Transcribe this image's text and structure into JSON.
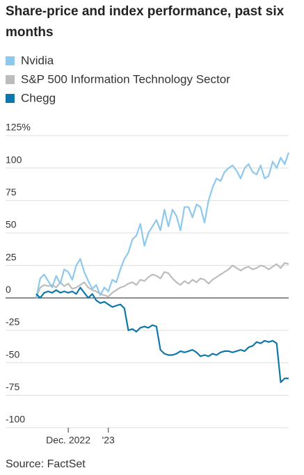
{
  "chart_data": {
    "type": "line",
    "title": "Share-price and index performance, past six months",
    "source": "Source: FactSet",
    "categories": [
      null,
      null,
      null,
      null,
      null,
      null,
      null,
      null,
      "Dec. 2022",
      null,
      null,
      null,
      null,
      null,
      null,
      null,
      null,
      null,
      "'23",
      null,
      null,
      null,
      null,
      null,
      null,
      null,
      null,
      null,
      null,
      null,
      null,
      null,
      null,
      null,
      null,
      null,
      null,
      null,
      null,
      null,
      null,
      null,
      null,
      null,
      null,
      null,
      null,
      null,
      null,
      null,
      null,
      null,
      null,
      null,
      null,
      null,
      null,
      null,
      null,
      null,
      null,
      null,
      null,
      null
    ],
    "series": [
      {
        "name": "Nvidia",
        "color": "#8ec8ec",
        "values": [
          0,
          15,
          18,
          13,
          8,
          17,
          11,
          22,
          20,
          14,
          25,
          30,
          20,
          13,
          7,
          10,
          2,
          8,
          5,
          14,
          12,
          22,
          30,
          35,
          45,
          48,
          57,
          40,
          50,
          55,
          60,
          52,
          68,
          55,
          68,
          63,
          52,
          70,
          70,
          62,
          72,
          70,
          58,
          75,
          85,
          92,
          90,
          97,
          100,
          102,
          98,
          92,
          100,
          103,
          97,
          95,
          102,
          92,
          94,
          105,
          100,
          108,
          103,
          112
        ]
      },
      {
        "name": "S&P 500 Information Technology Sector",
        "color": "#bcbcbc",
        "values": [
          0,
          8,
          10,
          9,
          10,
          8,
          12,
          9,
          11,
          7,
          8,
          10,
          12,
          8,
          6,
          5,
          3,
          2,
          1,
          4,
          6,
          8,
          9,
          11,
          12,
          10,
          14,
          13,
          16,
          18,
          17,
          15,
          20,
          19,
          15,
          12,
          10,
          13,
          11,
          14,
          12,
          15,
          14,
          11,
          14,
          16,
          18,
          20,
          22,
          25,
          23,
          21,
          23,
          24,
          22,
          23,
          25,
          24,
          22,
          24,
          26,
          23,
          27,
          26
        ]
      },
      {
        "name": "Chegg",
        "color": "#0e77aa",
        "values": [
          3,
          0,
          4,
          5,
          4,
          6,
          4,
          5,
          4,
          5,
          3,
          8,
          4,
          0,
          3,
          -2,
          -4,
          -3,
          -5,
          -7,
          -6,
          -5,
          -8,
          -25,
          -24,
          -26,
          -23,
          -22,
          -23,
          -21,
          -22,
          -40,
          -43,
          -44,
          -44,
          -43,
          -41,
          -42,
          -41,
          -40,
          -42,
          -45,
          -44,
          -45,
          -43,
          -44,
          -42,
          -41,
          -41,
          -42,
          -41,
          -40,
          -41,
          -38,
          -37,
          -34,
          -35,
          -33,
          -34,
          -33,
          -35,
          -65,
          -62,
          -62
        ]
      }
    ],
    "ylim": [
      -100,
      125
    ],
    "yticks": [
      {
        "value": 125,
        "label": "125%"
      },
      100,
      75,
      50,
      25,
      0,
      -25,
      -50,
      -75,
      -100
    ],
    "grid": true
  }
}
